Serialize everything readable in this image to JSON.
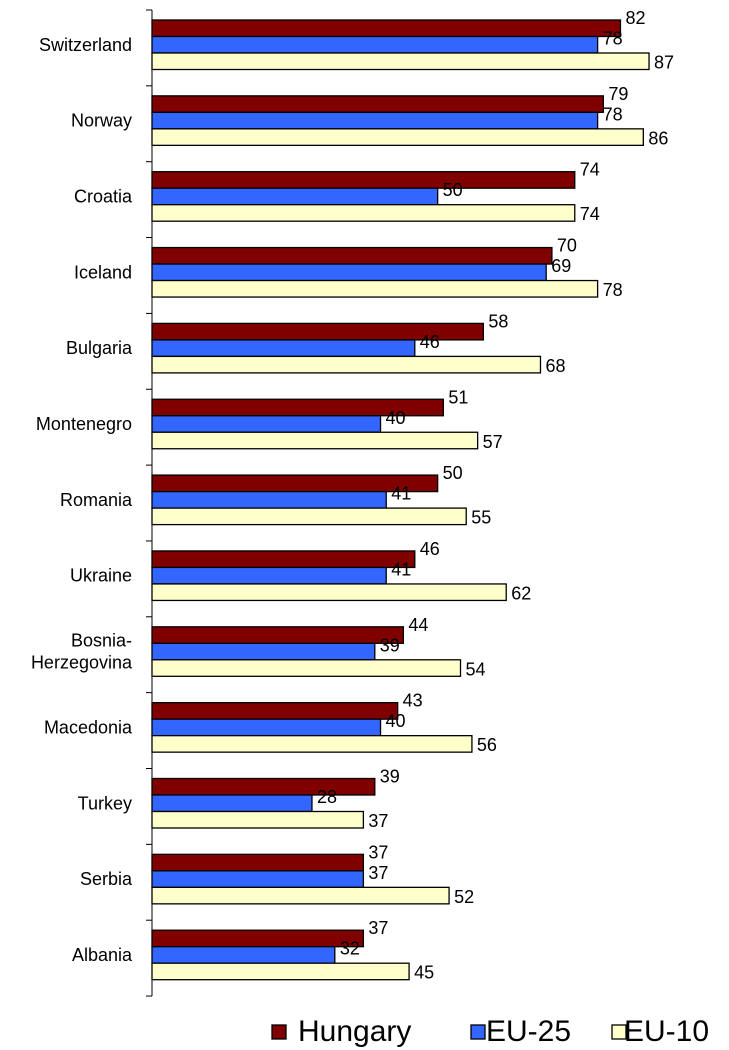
{
  "chart_data": {
    "type": "bar",
    "orientation": "horizontal",
    "title": "",
    "xlabel": "",
    "ylabel": "",
    "xlim": [
      0,
      100
    ],
    "grid": false,
    "legend_position": "bottom",
    "categories": [
      [
        "Switzerland"
      ],
      [
        "Norway"
      ],
      [
        "Croatia"
      ],
      [
        "Iceland"
      ],
      [
        "Bulgaria"
      ],
      [
        "Montenegro"
      ],
      [
        "Romania"
      ],
      [
        "Ukraine"
      ],
      [
        "Bosnia-",
        "Herzegovina"
      ],
      [
        "Macedonia"
      ],
      [
        "Turkey"
      ],
      [
        "Serbia"
      ],
      [
        "Albania"
      ]
    ],
    "series": [
      {
        "name": "Hungary",
        "color": "#800000",
        "values": [
          82,
          79,
          74,
          70,
          58,
          51,
          50,
          46,
          44,
          43,
          39,
          37,
          37
        ]
      },
      {
        "name": "EU-25",
        "color": "#3366ff",
        "values": [
          78,
          78,
          50,
          69,
          46,
          40,
          41,
          41,
          39,
          40,
          28,
          37,
          32
        ]
      },
      {
        "name": "EU-10",
        "color": "#ffffcc",
        "values": [
          87,
          86,
          74,
          78,
          68,
          57,
          55,
          62,
          54,
          56,
          37,
          52,
          45
        ]
      }
    ]
  }
}
